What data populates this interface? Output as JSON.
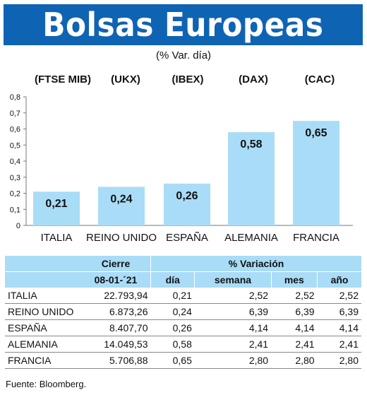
{
  "title": "Bolsas Europeas",
  "subtitle": "(% Var. día)",
  "indices": [
    "(FTSE MIB)",
    "(UKX)",
    "(IBEX)",
    "(DAX)",
    "(CAC)"
  ],
  "chart_data": {
    "type": "bar",
    "categories": [
      "ITALIA",
      "REINO UNIDO",
      "ESPAÑA",
      "ALEMANIA",
      "FRANCIA"
    ],
    "values": [
      0.21,
      0.24,
      0.26,
      0.58,
      0.65
    ],
    "value_labels": [
      "0,21",
      "0,24",
      "0,26",
      "0,58",
      "0,65"
    ],
    "yticks": [
      "0",
      "0,1",
      "0,2",
      "0,3",
      "0,4",
      "0,5",
      "0,6",
      "0,7",
      "0,8"
    ],
    "ylim": [
      0,
      0.8
    ],
    "bar_color": "#a9dcf7"
  },
  "table": {
    "header1": [
      "",
      "Cierre",
      "% Variación"
    ],
    "header2": [
      "",
      "08-01-´21",
      "día",
      "semana",
      "mes",
      "año"
    ],
    "rows": [
      [
        "ITALIA",
        "22.793,94",
        "0,21",
        "2,52",
        "2,52",
        "2,52"
      ],
      [
        "REINO UNIDO",
        "6.873,26",
        "0,24",
        "6,39",
        "6,39",
        "6,39"
      ],
      [
        "ESPAÑA",
        "8.407,70",
        "0,26",
        "4,14",
        "4,14",
        "4,14"
      ],
      [
        "ALEMANIA",
        "14.049,53",
        "0,58",
        "2,41",
        "2,41",
        "2,41"
      ],
      [
        "FRANCIA",
        "5.706,88",
        "0,65",
        "2,80",
        "2,80",
        "2,80"
      ]
    ]
  },
  "source": "Fuente: Bloomberg.",
  "colors": {
    "banner": "#0f63b3",
    "accent": "#a9dcf7"
  }
}
